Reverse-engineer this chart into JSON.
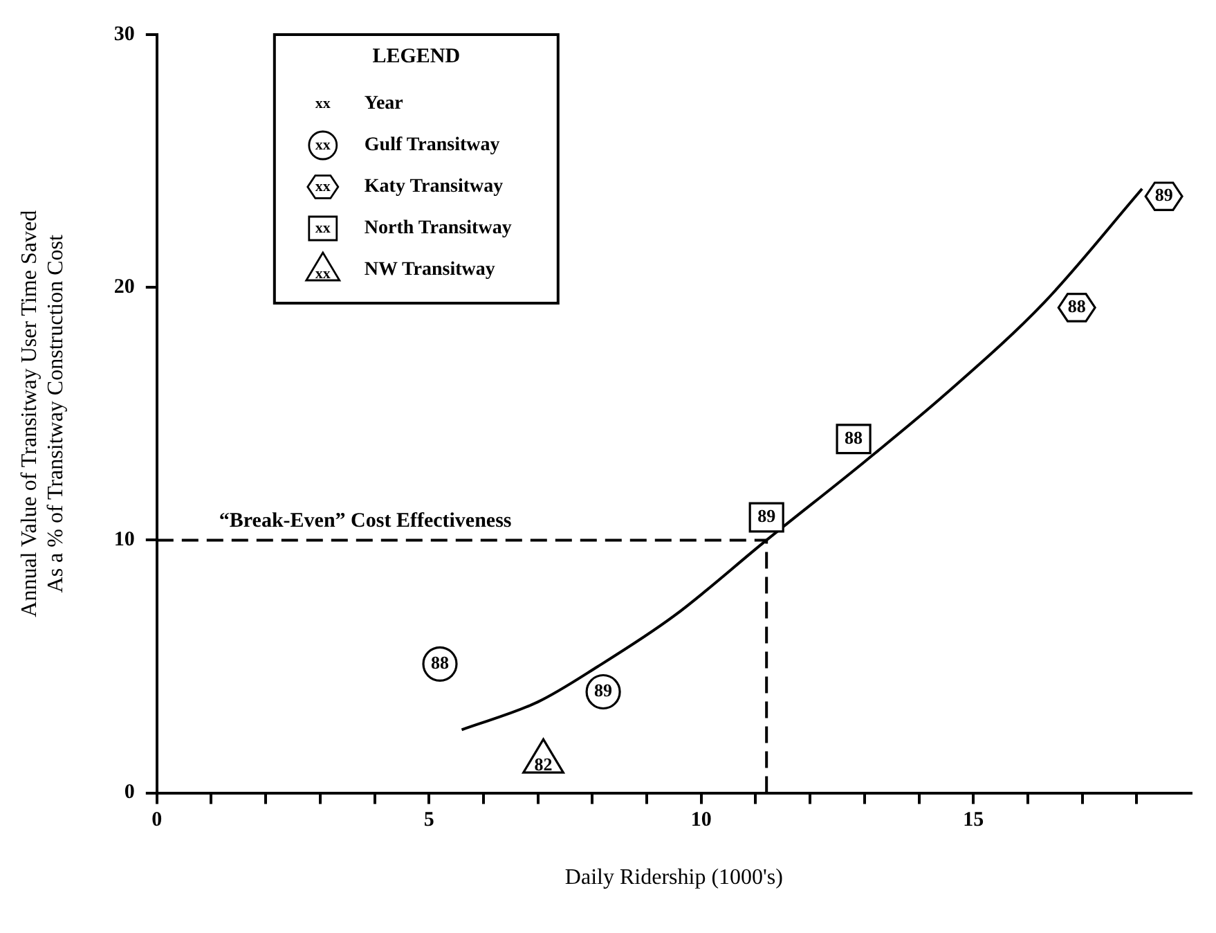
{
  "chart_data": {
    "type": "scatter",
    "xlabel": "Daily Ridership (1000's)",
    "ylabel": "Annual Value of Transitway User Time Saved\nAs a % of Transitway Construction Cost",
    "xlim": [
      0,
      19
    ],
    "xticks": [
      0,
      {
        "value": 1,
        "label": null
      },
      {
        "value": 2,
        "label": null
      },
      {
        "value": 3,
        "label": null
      },
      {
        "value": 4,
        "label": null
      },
      5,
      {
        "value": 6,
        "label": null
      },
      {
        "value": 7,
        "label": null
      },
      {
        "value": 8,
        "label": null
      },
      {
        "value": 9,
        "label": null
      },
      10,
      {
        "value": 11,
        "label": null
      },
      {
        "value": 12,
        "label": null
      },
      {
        "value": 13,
        "label": null
      },
      {
        "value": 14,
        "label": null
      },
      15,
      {
        "value": 16,
        "label": null
      },
      {
        "value": 17,
        "label": null
      },
      {
        "value": 18,
        "label": null
      }
    ],
    "ylim": [
      0,
      30
    ],
    "yticks": [
      0,
      10,
      20,
      30
    ],
    "grid": false,
    "legend": "top left",
    "legend_title": "LEGEND",
    "annotations": [
      "xx",
      "Year",
      {
        "text": "88",
        "x": 5.2,
        "y": 5.1
      },
      {
        "text": "89",
        "x": 8.2,
        "y": 4.0
      },
      {
        "text": "88",
        "x": 16.9,
        "y": 19.2
      },
      {
        "text": "89",
        "x": 18.5,
        "y": 23.6
      },
      {
        "text": "89",
        "x": 11.2,
        "y": 10.9
      },
      {
        "text": "88",
        "x": 12.8,
        "y": 14.0
      },
      {
        "text": "82",
        "x": 7.1,
        "y": 1.3
      }
    ],
    "ref_lines": [
      {
        "axis": "y",
        "value": 10,
        "label": "“Break-Even” Cost Effectiveness",
        "line_style": "dashed",
        "color": "#000000"
      },
      {
        "axis": "x",
        "value": 11.2,
        "label": null,
        "line_style": "dashed",
        "color": "#000000"
      }
    ],
    "series": [
      {
        "name": "Gulf Transitway",
        "color": "#000000",
        "marker": "circle",
        "x": [
          5.2,
          8.2
        ],
        "values": [
          5.1,
          4.0
        ]
      },
      {
        "name": "Katy Transitway",
        "color": "#000000",
        "x": [
          16.9,
          18.5
        ],
        "values": [
          19.2,
          23.6
        ]
      },
      {
        "name": "North Transitway",
        "color": "#000000",
        "marker": "square",
        "x": [
          11.2,
          12.8
        ],
        "values": [
          10.9,
          14.0
        ]
      },
      {
        "name": "NW Transitway",
        "color": "#000000",
        "marker": "triangle",
        "x": [
          7.1
        ],
        "values": [
          1.3
        ]
      },
      {
        "type": "line",
        "color": "#000000",
        "marker": "none",
        "line_style": "solid",
        "x": [
          5.6,
          7,
          8.1,
          9.5,
          11.2,
          13,
          14.5,
          16.3,
          18.1
        ],
        "values": [
          2.5,
          3.6,
          5.0,
          7.0,
          10,
          13.1,
          15.8,
          19.4,
          23.9
        ]
      }
    ]
  }
}
